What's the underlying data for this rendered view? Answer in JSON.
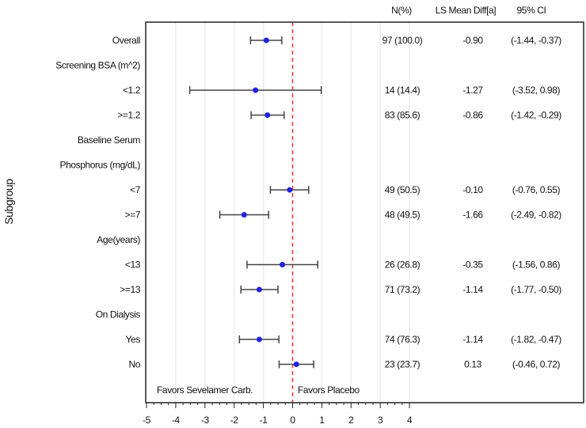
{
  "chart_data": {
    "type": "forest",
    "title": "",
    "xlabel": "",
    "ylabel": "Subgroup",
    "xlim": [
      -5,
      4
    ],
    "x_ticks": [
      -5,
      -4,
      -3,
      -2,
      -1,
      0,
      1,
      2,
      3,
      4
    ],
    "reference_line": 0,
    "grid": "vertical",
    "column_headers": {
      "n_pct": "N(%)",
      "ls_mean": "LS Mean Diff[a]",
      "ci": "95% CI"
    },
    "annotations": {
      "left": "Favors Sevelamer Carb.",
      "right": "Favors Placebo"
    },
    "rows": [
      {
        "label": "Overall",
        "estimate": -0.9,
        "lower": -1.44,
        "upper": -0.37,
        "n_pct": "97 (100.0)",
        "ls_mean": "-0.90",
        "ci": "(-1.44, -0.37)"
      },
      {
        "label": "Screening BSA (m^2)",
        "header": true
      },
      {
        "label": "<1.2",
        "estimate": -1.27,
        "lower": -3.52,
        "upper": 0.98,
        "n_pct": "14 (14.4)",
        "ls_mean": "-1.27",
        "ci": "(-3.52, 0.98)"
      },
      {
        "label": ">=1.2",
        "estimate": -0.86,
        "lower": -1.42,
        "upper": -0.29,
        "n_pct": "83 (85.6)",
        "ls_mean": "-0.86",
        "ci": "(-1.42, -0.29)"
      },
      {
        "label": "Baseline Serum",
        "header": true
      },
      {
        "label": "Phosphorus (mg/dL)",
        "header": true
      },
      {
        "label": "<7",
        "estimate": -0.1,
        "lower": -0.76,
        "upper": 0.55,
        "n_pct": "49 (50.5)",
        "ls_mean": "-0.10",
        "ci": "(-0.76, 0.55)"
      },
      {
        "label": ">=7",
        "estimate": -1.66,
        "lower": -2.49,
        "upper": -0.82,
        "n_pct": "48 (49.5)",
        "ls_mean": "-1.66",
        "ci": "(-2.49, -0.82)"
      },
      {
        "label": "Age(years)",
        "header": true
      },
      {
        "label": "<13",
        "estimate": -0.35,
        "lower": -1.56,
        "upper": 0.86,
        "n_pct": "26 (26.8)",
        "ls_mean": "-0.35",
        "ci": "(-1.56, 0.86)"
      },
      {
        "label": ">=13",
        "estimate": -1.14,
        "lower": -1.77,
        "upper": -0.5,
        "n_pct": "71 (73.2)",
        "ls_mean": "-1.14",
        "ci": "(-1.77, -0.50)"
      },
      {
        "label": "On Dialysis",
        "header": true
      },
      {
        "label": "Yes",
        "estimate": -1.14,
        "lower": -1.82,
        "upper": -0.47,
        "n_pct": "74 (76.3)",
        "ls_mean": "-1.14",
        "ci": "(-1.82, -0.47)"
      },
      {
        "label": "No",
        "estimate": 0.13,
        "lower": -0.46,
        "upper": 0.72,
        "n_pct": "23 (23.7)",
        "ls_mean": "0.13",
        "ci": "(-0.46, 0.72)"
      }
    ],
    "colors": {
      "marker": "#2222dd",
      "whisker": "#444444",
      "reference": "#ee3333",
      "grid": "#ececec",
      "frame": "#222222"
    }
  }
}
